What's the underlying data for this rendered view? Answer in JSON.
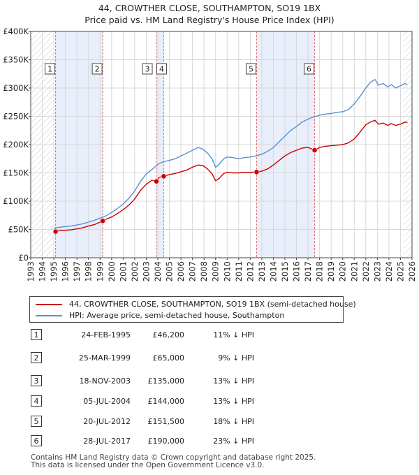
{
  "title": {
    "line1": "44, CROWTHER CLOSE, SOUTHAMPTON, SO19 1BX",
    "line2": "Price paid vs. HM Land Registry's House Price Index (HPI)"
  },
  "chart_data": {
    "type": "line",
    "title": "44, CROWTHER CLOSE, SOUTHAMPTON, SO19 1BX — Price paid vs. HM Land Registry's House Price Index (HPI)",
    "xlim": [
      1993,
      2026
    ],
    "ylim": [
      0,
      400000
    ],
    "x_ticks": [
      "1993",
      "1994",
      "1995",
      "1996",
      "1997",
      "1998",
      "1999",
      "2000",
      "2001",
      "2002",
      "2003",
      "2004",
      "2005",
      "2006",
      "2007",
      "2008",
      "2009",
      "2010",
      "2011",
      "2012",
      "2013",
      "2014",
      "2015",
      "2016",
      "2017",
      "2018",
      "2019",
      "2020",
      "2021",
      "2022",
      "2023",
      "2024",
      "2025",
      "2026"
    ],
    "y_ticks": [
      {
        "value": 0,
        "label": "£0"
      },
      {
        "value": 50000,
        "label": "£50K"
      },
      {
        "value": 100000,
        "label": "£100K"
      },
      {
        "value": 150000,
        "label": "£150K"
      },
      {
        "value": 200000,
        "label": "£200K"
      },
      {
        "value": 250000,
        "label": "£250K"
      },
      {
        "value": 300000,
        "label": "£300K"
      },
      {
        "value": 350000,
        "label": "£350K"
      },
      {
        "value": 400000,
        "label": "£400K"
      }
    ],
    "grid": true,
    "series": [
      {
        "name": "HPI: Average price, semi-detached house, Southampton",
        "color": "#5b8fd0",
        "x": [
          1995.0,
          1995.5,
          1996.0,
          1996.5,
          1997.0,
          1997.5,
          1998.0,
          1998.5,
          1999.0,
          1999.5,
          2000.0,
          2000.5,
          2001.0,
          2001.5,
          2002.0,
          2002.5,
          2003.0,
          2003.5,
          2004.0,
          2004.5,
          2005.0,
          2005.5,
          2006.0,
          2006.5,
          2007.0,
          2007.5,
          2007.9,
          2008.3,
          2008.7,
          2009.0,
          2009.3,
          2009.7,
          2010.0,
          2010.5,
          2011.0,
          2011.5,
          2012.0,
          2012.5,
          2013.0,
          2013.5,
          2014.0,
          2014.5,
          2015.0,
          2015.5,
          2016.0,
          2016.5,
          2017.0,
          2017.5,
          2018.0,
          2018.5,
          2019.0,
          2019.5,
          2020.0,
          2020.5,
          2021.0,
          2021.5,
          2022.0,
          2022.4,
          2022.8,
          2023.1,
          2023.5,
          2023.9,
          2024.2,
          2024.6,
          2025.0,
          2025.4,
          2025.6
        ],
        "values": [
          52000,
          54000,
          55000,
          56000,
          58000,
          60000,
          63000,
          66000,
          70000,
          74000,
          80000,
          87000,
          95000,
          105000,
          118000,
          135000,
          148000,
          156000,
          165000,
          170000,
          172000,
          175000,
          180000,
          185000,
          190000,
          195000,
          192000,
          185000,
          175000,
          160000,
          165000,
          175000,
          178000,
          177000,
          175000,
          177000,
          178000,
          180000,
          183000,
          188000,
          195000,
          205000,
          215000,
          225000,
          232000,
          240000,
          245000,
          249000,
          252000,
          254000,
          255000,
          257000,
          258000,
          262000,
          272000,
          285000,
          300000,
          310000,
          315000,
          305000,
          308000,
          302000,
          306000,
          300000,
          304000,
          308000,
          306000
        ]
      },
      {
        "name": "44, CROWTHER CLOSE, SOUTHAMPTON, SO19 1BX (semi-detached house)",
        "color": "#cc0000",
        "x": [
          1995.15,
          1995.5,
          1996.0,
          1996.5,
          1997.0,
          1997.5,
          1998.0,
          1998.5,
          1999.23,
          1999.5,
          2000.0,
          2000.5,
          2001.0,
          2001.5,
          2002.0,
          2002.5,
          2003.0,
          2003.5,
          2003.88,
          2004.1,
          2004.51,
          2005.0,
          2005.5,
          2006.0,
          2006.5,
          2007.0,
          2007.5,
          2007.9,
          2008.3,
          2008.7,
          2009.0,
          2009.3,
          2009.7,
          2010.0,
          2010.5,
          2011.0,
          2011.5,
          2012.0,
          2012.55,
          2013.0,
          2013.5,
          2014.0,
          2014.5,
          2015.0,
          2015.5,
          2016.0,
          2016.5,
          2017.0,
          2017.57,
          2018.0,
          2018.5,
          2019.0,
          2019.5,
          2020.0,
          2020.5,
          2021.0,
          2021.5,
          2022.0,
          2022.4,
          2022.8,
          2023.1,
          2023.5,
          2023.9,
          2024.2,
          2024.6,
          2025.0,
          2025.4,
          2025.6
        ],
        "values": [
          46200,
          48000,
          48500,
          49500,
          51000,
          53000,
          56000,
          58500,
          65000,
          68000,
          72000,
          78000,
          85000,
          93000,
          104000,
          119000,
          130000,
          137000,
          135000,
          142000,
          144000,
          147000,
          149000,
          152000,
          155000,
          160000,
          164000,
          163000,
          157000,
          148000,
          136000,
          140000,
          149000,
          151000,
          150000,
          150000,
          151000,
          151000,
          151500,
          153000,
          157000,
          164000,
          172000,
          180000,
          186000,
          190000,
          194000,
          195000,
          190000,
          195000,
          197000,
          198000,
          199000,
          200000,
          203000,
          210000,
          222000,
          235000,
          240000,
          243000,
          236000,
          238000,
          234000,
          237000,
          234000,
          236000,
          240000,
          239000
        ]
      }
    ],
    "sales": [
      {
        "num": "1",
        "date": "24-FEB-1995",
        "year": 1995.15,
        "price": 46200,
        "price_label": "£46,200",
        "hpi": "11% ↓ HPI"
      },
      {
        "num": "2",
        "date": "25-MAR-1999",
        "year": 1999.23,
        "price": 65000,
        "price_label": "£65,000",
        "hpi": "9% ↓ HPI"
      },
      {
        "num": "3",
        "date": "18-NOV-2003",
        "year": 2003.88,
        "price": 135000,
        "price_label": "£135,000",
        "hpi": "13% ↓ HPI"
      },
      {
        "num": "4",
        "date": "05-JUL-2004",
        "year": 2004.51,
        "price": 144000,
        "price_label": "£144,000",
        "hpi": "13% ↓ HPI"
      },
      {
        "num": "5",
        "date": "20-JUL-2012",
        "year": 2012.55,
        "price": 151500,
        "price_label": "£151,500",
        "hpi": "18% ↓ HPI"
      },
      {
        "num": "6",
        "date": "28-JUL-2017",
        "year": 2017.57,
        "price": 190000,
        "price_label": "£190,000",
        "hpi": "23% ↓ HPI"
      }
    ],
    "hatch_ranges": [
      [
        1993,
        1995.0
      ],
      [
        2025.25,
        2026
      ]
    ]
  },
  "legend": {
    "property_label": "44, CROWTHER CLOSE, SOUTHAMPTON, SO19 1BX (semi-detached house)",
    "hpi_label": "HPI: Average price, semi-detached house, Southampton"
  },
  "sales_table": [
    {
      "num": "1",
      "date": "24-FEB-1995",
      "price": "£46,200",
      "hpi": "11% ↓ HPI"
    },
    {
      "num": "2",
      "date": "25-MAR-1999",
      "price": "£65,000",
      "hpi": "9% ↓ HPI"
    },
    {
      "num": "3",
      "date": "18-NOV-2003",
      "price": "£135,000",
      "hpi": "13% ↓ HPI"
    },
    {
      "num": "4",
      "date": "05-JUL-2004",
      "price": "£144,000",
      "hpi": "13% ↓ HPI"
    },
    {
      "num": "5",
      "date": "20-JUL-2012",
      "price": "£151,500",
      "hpi": "18% ↓ HPI"
    },
    {
      "num": "6",
      "date": "28-JUL-2017",
      "price": "£190,000",
      "hpi": "23% ↓ HPI"
    }
  ],
  "footer": {
    "line1": "Contains HM Land Registry data © Crown copyright and database right 2025.",
    "line2": "This data is licensed under the Open Government Licence v3.0."
  }
}
